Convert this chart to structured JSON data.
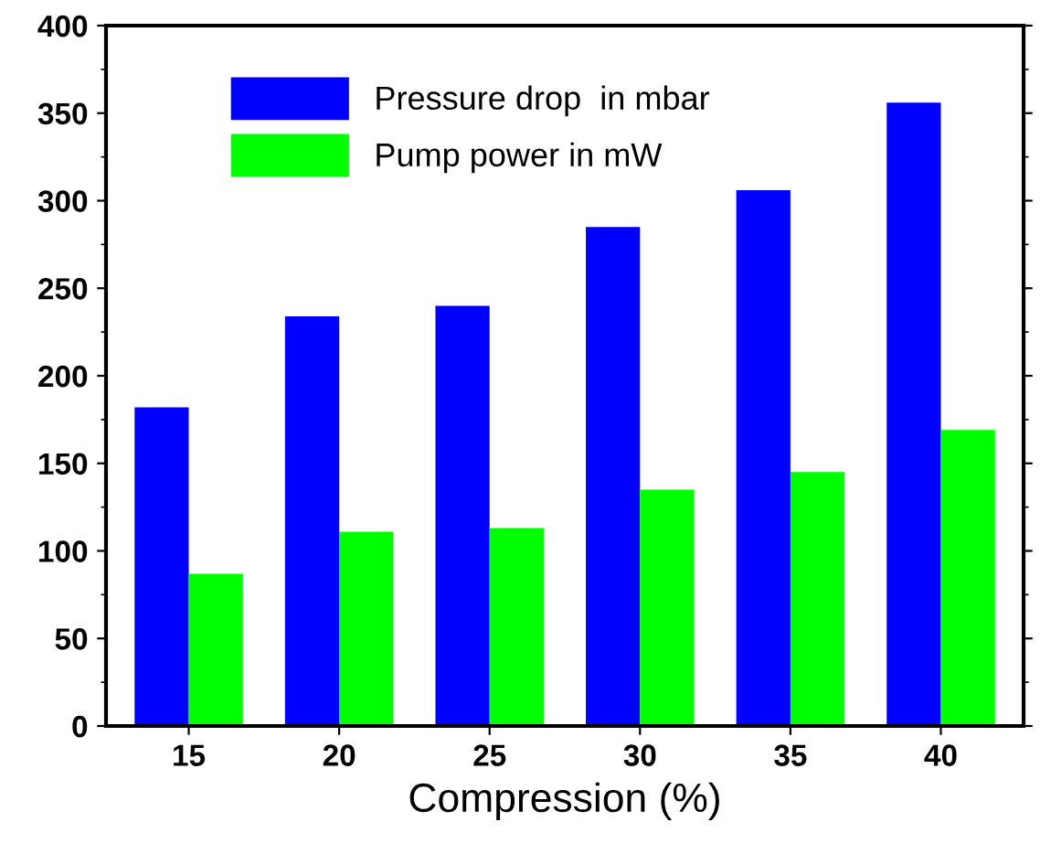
{
  "chart_data": {
    "type": "bar",
    "xlabel": "Compression (%)",
    "categories": [
      "15",
      "20",
      "25",
      "30",
      "35",
      "40"
    ],
    "series": [
      {
        "name": "Pressure drop  in mbar",
        "color": "#0000ff",
        "values": [
          182,
          234,
          240,
          285,
          306,
          356
        ]
      },
      {
        "name": "Pump power in mW",
        "color": "#00ff00",
        "values": [
          87,
          111,
          113,
          135,
          145,
          169
        ]
      }
    ],
    "ylim": [
      0,
      400
    ],
    "yticks": [
      0,
      50,
      100,
      150,
      200,
      250,
      300,
      350,
      400
    ],
    "grid": false,
    "legend": "top left"
  }
}
